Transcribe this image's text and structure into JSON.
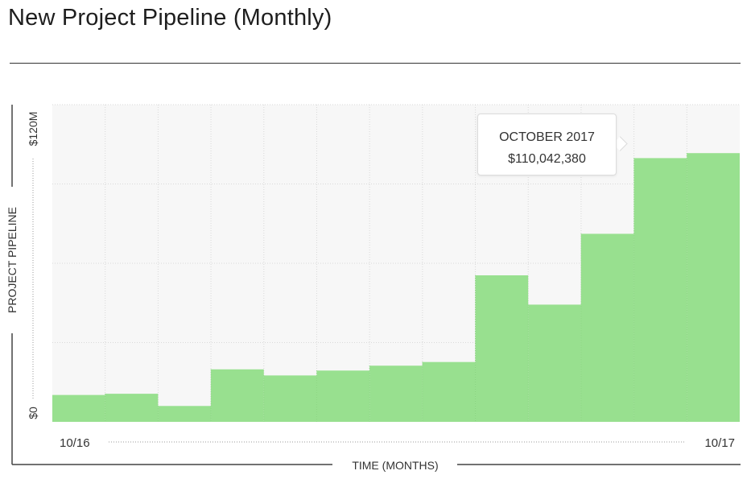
{
  "chart_data": {
    "type": "bar",
    "title": "New Project Pipeline (Monthly)",
    "xlabel": "TIME (MONTHS)",
    "ylabel": "PROJECT PIPELINE",
    "ylim": [
      0,
      120000000
    ],
    "y_tick_labels": [
      "$0",
      "$120M"
    ],
    "x_tick_labels": [
      "10/16",
      "10/17"
    ],
    "categories": [
      "Oct 2016",
      "Nov 2016",
      "Dec 2016",
      "Jan 2017",
      "Feb 2017",
      "Mar 2017",
      "Apr 2017",
      "May 2017",
      "Jun 2017",
      "Jul 2017",
      "Aug 2017",
      "Sep 2017",
      "Oct 2017"
    ],
    "values": [
      11000000,
      11500000,
      6500000,
      21500000,
      19000000,
      21000000,
      23000000,
      24500000,
      60000000,
      48000000,
      77000000,
      108000000,
      110042380
    ],
    "grid": true,
    "bar_color": "#98e08f",
    "tooltip": {
      "title": "OCTOBER 2017",
      "value": "$110,042,380"
    }
  }
}
